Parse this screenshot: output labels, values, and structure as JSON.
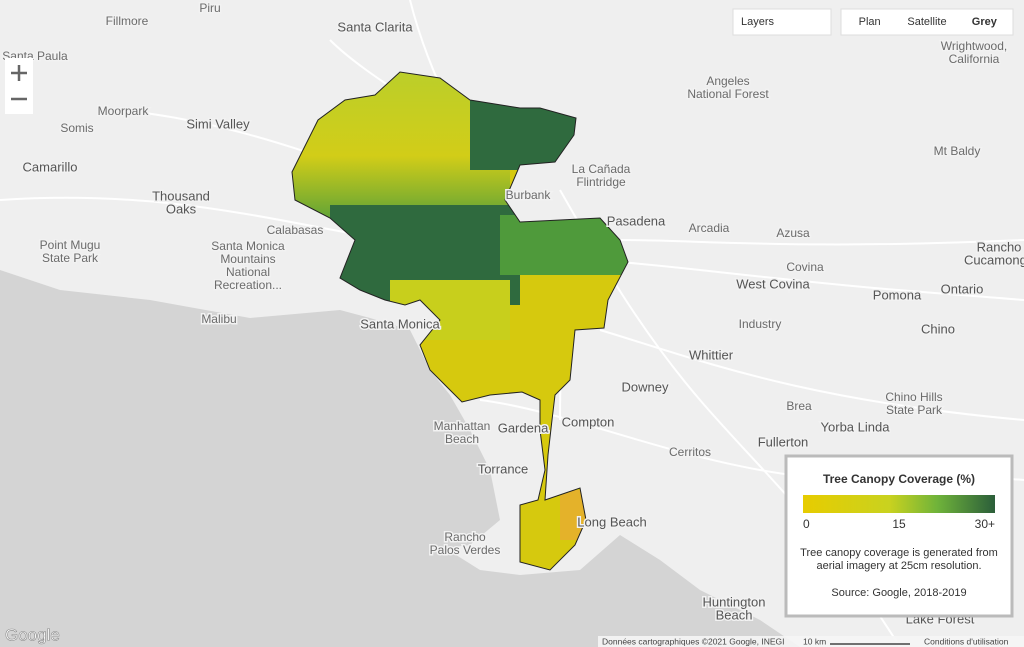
{
  "map_controls": {
    "layers": "Layers",
    "map_types": [
      "Plan",
      "Satellite",
      "Grey"
    ],
    "selected_map_type": "Grey"
  },
  "place_labels": [
    {
      "lines": [
        "Fillmore"
      ]
    },
    {
      "lines": [
        "Piru"
      ]
    },
    {
      "lines": [
        "Santa Clarita"
      ]
    },
    {
      "lines": [
        "Santa Paula"
      ]
    },
    {
      "lines": [
        "Moorpark"
      ]
    },
    {
      "lines": [
        "Simi Valley"
      ]
    },
    {
      "lines": [
        "Somis"
      ]
    },
    {
      "lines": [
        "Camarillo"
      ]
    },
    {
      "lines": [
        "Thousand",
        "Oaks"
      ]
    },
    {
      "lines": [
        "Angeles",
        "National Forest"
      ]
    },
    {
      "lines": [
        "Wrightwood,",
        "California"
      ]
    },
    {
      "lines": [
        "Mt Baldy"
      ]
    },
    {
      "lines": [
        "La Cañada",
        "Flintridge"
      ]
    },
    {
      "lines": [
        "Burbank"
      ]
    },
    {
      "lines": [
        "Pasadena"
      ]
    },
    {
      "lines": [
        "Arcadia"
      ]
    },
    {
      "lines": [
        "Azusa"
      ]
    },
    {
      "lines": [
        "Covina"
      ]
    },
    {
      "lines": [
        "West Covina"
      ]
    },
    {
      "lines": [
        "Pomona"
      ]
    },
    {
      "lines": [
        "Ontario"
      ]
    },
    {
      "lines": [
        "Rancho",
        "Cucamonga"
      ]
    },
    {
      "lines": [
        "Calabasas"
      ]
    },
    {
      "lines": [
        "Santa Monica",
        "Mountains",
        "National",
        "Recreation..."
      ]
    },
    {
      "lines": [
        "Point Mugu",
        "State Park"
      ]
    },
    {
      "lines": [
        "Malibu"
      ]
    },
    {
      "lines": [
        "Santa Monica"
      ]
    },
    {
      "lines": [
        "Industry"
      ]
    },
    {
      "lines": [
        "Chino"
      ]
    },
    {
      "lines": [
        "Whittier"
      ]
    },
    {
      "lines": [
        "Downey"
      ]
    },
    {
      "lines": [
        "Chino Hills",
        "State Park"
      ]
    },
    {
      "lines": [
        "Brea"
      ]
    },
    {
      "lines": [
        "Yorba Linda"
      ]
    },
    {
      "lines": [
        "Fullerton"
      ]
    },
    {
      "lines": [
        "Manhattan",
        "Beach"
      ]
    },
    {
      "lines": [
        "Gardena"
      ]
    },
    {
      "lines": [
        "Compton"
      ]
    },
    {
      "lines": [
        "Cerritos"
      ]
    },
    {
      "lines": [
        "Torrance"
      ]
    },
    {
      "lines": [
        "Long Beach"
      ]
    },
    {
      "lines": [
        "Rancho",
        "Palos Verdes"
      ]
    },
    {
      "lines": [
        "Huntington",
        "Beach"
      ]
    },
    {
      "lines": [
        "Lake Forest"
      ]
    }
  ],
  "legend": {
    "title": "Tree Canopy Coverage (%)",
    "scale": {
      "lim": [
        0,
        30
      ],
      "ticks": [
        0,
        15,
        {
          "value": 30,
          "label": "30+"
        }
      ]
    },
    "description": [
      "Tree canopy coverage is generated from",
      "aerial imagery at 25cm resolution."
    ],
    "source": "Source: Google, 2018-2019"
  },
  "footer": {
    "logo": "Google",
    "attribution": "Données cartographiques ©2021 Google, INEGI",
    "scale": "10 km",
    "terms": "Conditions d'utilisation"
  }
}
